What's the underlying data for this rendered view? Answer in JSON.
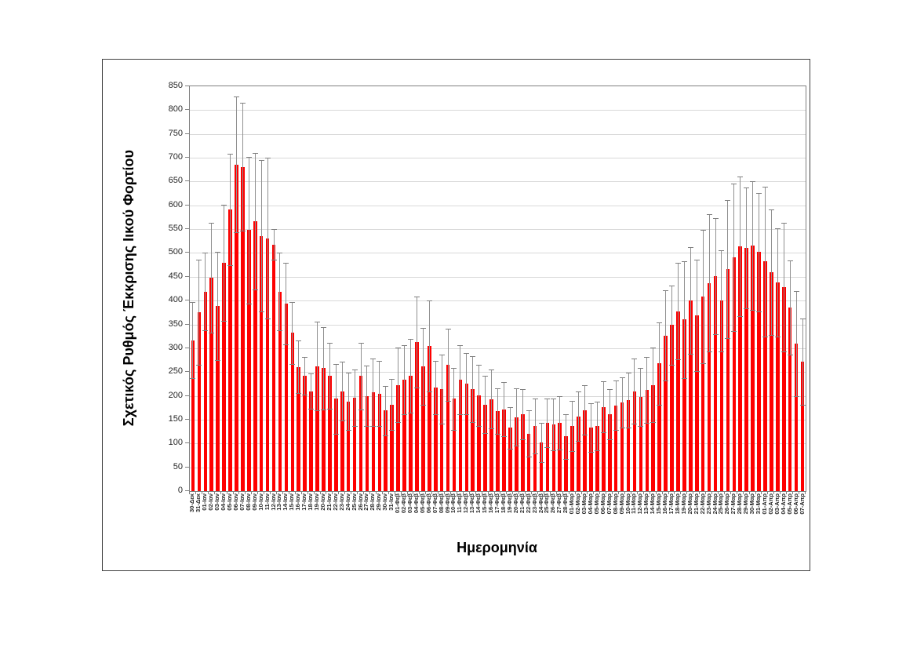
{
  "figure": {
    "y_axis_title": "Σχετικός Ρυθμός Έκκρισης Ιικού Φορτίου",
    "x_axis_title": "Ημερομηνία"
  },
  "chart_data": {
    "type": "bar",
    "title": "",
    "xlabel": "Ημερομηνία",
    "ylabel": "Σχετικός Ρυθμός Έκκρισης Ιικού Φορτίου",
    "ylim": [
      0,
      850
    ],
    "ytick_step": 50,
    "grid": true,
    "legend": false,
    "bar_color": "#fe0000",
    "error_bar_color": "#909090",
    "error_bars": "symmetric",
    "y_tick_labels": [
      "0",
      "50",
      "100",
      "150",
      "200",
      "250",
      "300",
      "350",
      "400",
      "450",
      "500",
      "550",
      "600",
      "650",
      "700",
      "750",
      "800",
      "850"
    ],
    "categories": [
      "30-Δεκ",
      "31-Δεκ",
      "01-Ιαν",
      "02-Ιαν",
      "03-Ιαν",
      "04-Ιαν",
      "05-Ιαν",
      "06-Ιαν",
      "07-Ιαν",
      "08-Ιαν",
      "09-Ιαν",
      "10-Ιαν",
      "11-Ιαν",
      "12-Ιαν",
      "13-Ιαν",
      "14-Ιαν",
      "15-Ιαν",
      "16-Ιαν",
      "17-Ιαν",
      "18-Ιαν",
      "19-Ιαν",
      "20-Ιαν",
      "21-Ιαν",
      "22-Ιαν",
      "23-Ιαν",
      "24-Ιαν",
      "25-Ιαν",
      "26-Ιαν",
      "27-Ιαν",
      "28-Ιαν",
      "29-Ιαν",
      "30-Ιαν",
      "31-Ιαν",
      "01-Φεβ",
      "02-Φεβ",
      "03-Φεβ",
      "04-Φεβ",
      "05-Φεβ",
      "06-Φεβ",
      "07-Φεβ",
      "08-Φεβ",
      "09-Φεβ",
      "10-Φεβ",
      "11-Φεβ",
      "12-Φεβ",
      "13-Φεβ",
      "14-Φεβ",
      "15-Φεβ",
      "16-Φεβ",
      "17-Φεβ",
      "18-Φεβ",
      "19-Φεβ",
      "20-Φεβ",
      "21-Φεβ",
      "22-Φεβ",
      "23-Φεβ",
      "24-Φεβ",
      "25-Φεβ",
      "26-Φεβ",
      "27-Φεβ",
      "28-Φεβ",
      "01-Μαρ",
      "02-Μαρ",
      "03-Μαρ",
      "04-Μαρ",
      "05-Μαρ",
      "06-Μαρ",
      "07-Μαρ",
      "08-Μαρ",
      "09-Μαρ",
      "10-Μαρ",
      "11-Μαρ",
      "12-Μαρ",
      "13-Μαρ",
      "14-Μαρ",
      "15-Μαρ",
      "16-Μαρ",
      "17-Μαρ",
      "18-Μαρ",
      "19-Μαρ",
      "20-Μαρ",
      "21-Μαρ",
      "22-Μαρ",
      "23-Μαρ",
      "24-Μαρ",
      "25-Μαρ",
      "26-Μαρ",
      "27-Μαρ",
      "28-Μαρ",
      "29-Μαρ",
      "30-Μαρ",
      "31-Μαρ",
      "01-Απρ",
      "02-Απρ",
      "03-Απρ",
      "04-Απρ",
      "05-Απρ",
      "06-Απρ",
      "07-Απρ"
    ],
    "values": [
      317,
      376,
      419,
      448,
      389,
      480,
      592,
      686,
      681,
      548,
      567,
      536,
      531,
      518,
      419,
      394,
      332,
      261,
      242,
      210,
      262,
      258,
      242,
      194,
      210,
      188,
      196,
      242,
      200,
      207,
      205,
      169,
      182,
      223,
      234,
      242,
      313,
      262,
      305,
      217,
      214,
      265,
      194,
      234,
      226,
      214,
      201,
      182,
      193,
      168,
      172,
      133,
      155,
      161,
      121,
      137,
      102,
      144,
      140,
      143,
      115,
      137,
      157,
      170,
      133,
      136,
      177,
      161,
      180,
      186,
      191,
      210,
      197,
      213,
      223,
      268,
      327,
      349,
      378,
      360,
      401,
      369,
      409,
      437,
      451,
      400,
      466,
      491,
      514,
      510,
      515,
      502,
      482,
      459,
      438,
      429,
      385,
      310,
      272
    ],
    "errors": [
      80,
      110,
      82,
      115,
      114,
      122,
      117,
      143,
      134,
      154,
      143,
      159,
      169,
      32,
      81,
      86,
      65,
      55,
      40,
      37,
      93,
      86,
      69,
      73,
      62,
      60,
      60,
      70,
      64,
      71,
      69,
      52,
      53,
      78,
      73,
      78,
      95,
      80,
      95,
      56,
      72,
      76,
      65,
      72,
      64,
      69,
      64,
      60,
      62,
      47,
      57,
      44,
      60,
      53,
      49,
      58,
      41,
      51,
      54,
      56,
      47,
      53,
      52,
      52,
      51,
      51,
      54,
      53,
      52,
      53,
      57,
      69,
      61,
      69,
      78,
      86,
      94,
      83,
      101,
      122,
      112,
      117,
      140,
      144,
      122,
      106,
      145,
      155,
      147,
      127,
      135,
      124,
      157,
      132,
      114,
      135,
      99,
      110,
      91
    ]
  }
}
